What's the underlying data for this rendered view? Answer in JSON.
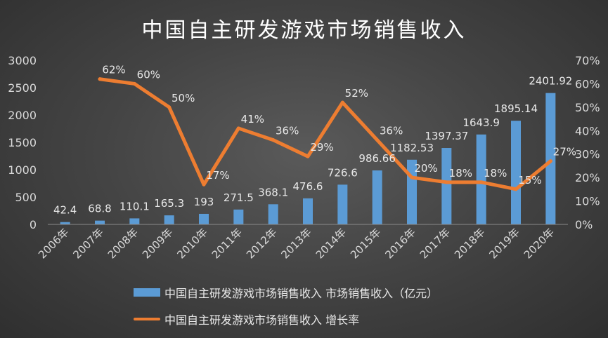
{
  "chart_data": {
    "type": "bar",
    "title": "中国自主研发游戏市场销售收入",
    "categories": [
      "2006年",
      "2007年",
      "2008年",
      "2009年",
      "2010年",
      "2011年",
      "2012年",
      "2013年",
      "2014年",
      "2015年",
      "2016年",
      "2017年",
      "2018年",
      "2019年",
      "2020年"
    ],
    "series": [
      {
        "name": "中国自主研发游戏市场销售收入 市场销售收入（亿元）",
        "type": "bar",
        "axis": "left",
        "color": "#5b9bd5",
        "values": [
          42.4,
          68.8,
          110.1,
          165.3,
          193,
          271.5,
          368.1,
          476.6,
          726.6,
          986.66,
          1182.53,
          1397.37,
          1643.9,
          1895.14,
          2401.92
        ],
        "labels": [
          "42.4",
          "68.8",
          "110.1",
          "165.3",
          "193",
          "271.5",
          "368.1",
          "476.6",
          "726.6",
          "986.66",
          "1182.53",
          "1397.37",
          "1643.9",
          "1895.14",
          "2401.92"
        ]
      },
      {
        "name": "中国自主研发游戏市场销售收入 增长率",
        "type": "line",
        "axis": "right",
        "color": "#ed7d31",
        "values": [
          null,
          62,
          60,
          50,
          17,
          41,
          36,
          29,
          52,
          36,
          20,
          18,
          18,
          15,
          27
        ],
        "labels": [
          "",
          "62%",
          "60%",
          "50%",
          "17%",
          "41%",
          "36%",
          "29%",
          "52%",
          "36%",
          "20%",
          "18%",
          "18%",
          "15%",
          "27%"
        ]
      }
    ],
    "y_left": {
      "min": 0,
      "max": 3000,
      "ticks": [
        "0",
        "500",
        "1000",
        "1500",
        "2000",
        "2500",
        "3000"
      ]
    },
    "y_right": {
      "min": 0,
      "max": 70,
      "ticks": [
        "0%",
        "10%",
        "20%",
        "30%",
        "40%",
        "50%",
        "60%",
        "70%"
      ]
    },
    "grid": false,
    "legend_position": "bottom"
  }
}
